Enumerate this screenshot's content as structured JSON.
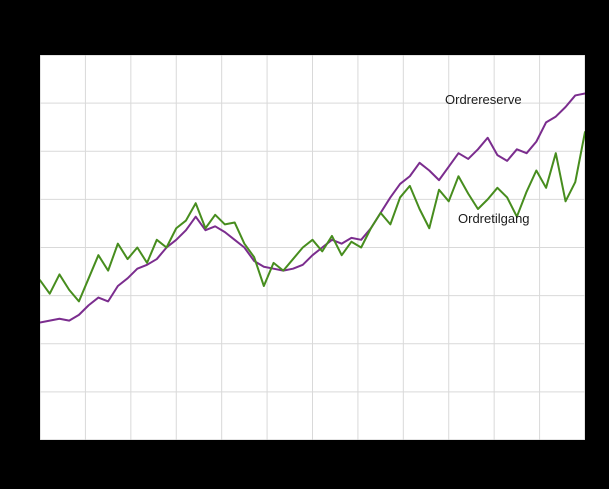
{
  "figure": {
    "background_color": "#000000",
    "plot_background_color": "#ffffff",
    "grid_color": "#d9d9d9",
    "border_color": "#c8c8c8"
  },
  "chart_data": {
    "type": "line",
    "title": "",
    "xlabel": "",
    "ylabel": "",
    "grid": true,
    "x_gridline_count": 13,
    "y_gridline_count": 9,
    "ylim": [
      0,
      100
    ],
    "legend_position": "inline-labels",
    "series": [
      {
        "name": "Ordrereserve",
        "color": "#7b2d8e",
        "values": [
          30.5,
          31,
          31.5,
          31,
          32.5,
          35,
          37,
          36,
          40,
          42,
          44.5,
          45.5,
          47,
          50,
          52,
          54.5,
          58,
          54.5,
          55.5,
          54,
          52,
          50,
          46.5,
          45,
          44.5,
          44,
          44.5,
          45.5,
          48,
          50,
          52,
          51,
          52.5,
          52,
          55,
          59,
          63,
          66.5,
          68.5,
          72,
          70,
          67.5,
          71,
          74.5,
          73,
          75.5,
          78.5,
          74,
          72.5,
          75.5,
          74.5,
          77.5,
          82.5,
          84,
          86.5,
          89.5,
          90
        ]
      },
      {
        "name": "Ordretilgang",
        "color": "#478d1e",
        "values": [
          41.5,
          38,
          43,
          39,
          36,
          42,
          48,
          44,
          51,
          47,
          50,
          46,
          52,
          50,
          55,
          57,
          61.5,
          55,
          58.5,
          56,
          56.5,
          51,
          47.5,
          40,
          46,
          44,
          47,
          50,
          52,
          49,
          53,
          48,
          51.5,
          50,
          55,
          59,
          56,
          63,
          66,
          60,
          55,
          65,
          62,
          68.5,
          64,
          60,
          62.5,
          65.5,
          63,
          58,
          64.5,
          70,
          65.5,
          74.5,
          62,
          67,
          80
        ]
      }
    ]
  }
}
